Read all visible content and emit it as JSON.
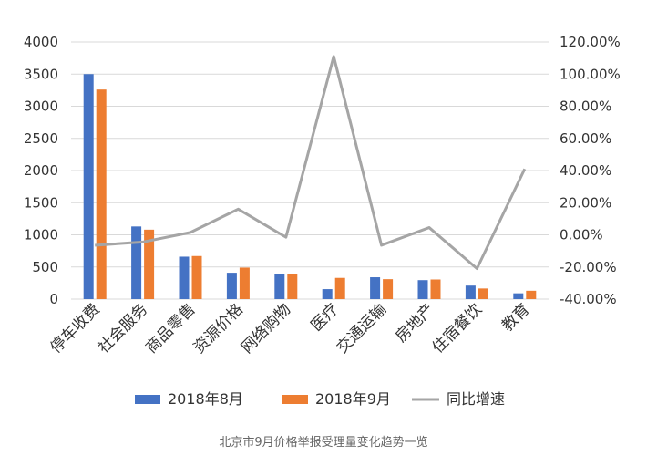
{
  "chart_data": {
    "type": "bar",
    "categories": [
      "停车收费",
      "社会服务",
      "商品零售",
      "资源价格",
      "网络购物",
      "医疗",
      "交通运输",
      "房地产",
      "住宿餐饮",
      "教育"
    ],
    "series": [
      {
        "name": "2018年8月",
        "type": "bar",
        "axis": "left",
        "color": "#4472C4",
        "values": [
          3500,
          1130,
          660,
          410,
          395,
          155,
          340,
          295,
          210,
          90
        ]
      },
      {
        "name": "2018年9月",
        "type": "bar",
        "axis": "left",
        "color": "#ED7D31",
        "values": [
          3260,
          1080,
          670,
          490,
          390,
          330,
          310,
          305,
          165,
          130
        ]
      },
      {
        "name": "同比增速",
        "type": "line",
        "axis": "right",
        "color": "#A5A5A5",
        "values": [
          -6.5,
          -4.5,
          1.5,
          16.0,
          -1.5,
          111.0,
          -6.5,
          4.5,
          -21.0,
          41.0
        ]
      }
    ],
    "y_left": {
      "min": 0,
      "max": 4000,
      "step": 500,
      "ticks": [
        "0",
        "500",
        "1000",
        "1500",
        "2000",
        "2500",
        "3000",
        "3500",
        "4000"
      ]
    },
    "y_right": {
      "min": -40,
      "max": 120,
      "step": 20,
      "ticks": [
        "-40.00%",
        "-20.00%",
        "0.00%",
        "20.00%",
        "40.00%",
        "60.00%",
        "80.00%",
        "100.00%",
        "120.00%"
      ]
    },
    "grid": true,
    "legend": {
      "position": "bottom"
    }
  },
  "caption": "北京市9月价格举报受理量变化趋势一览"
}
